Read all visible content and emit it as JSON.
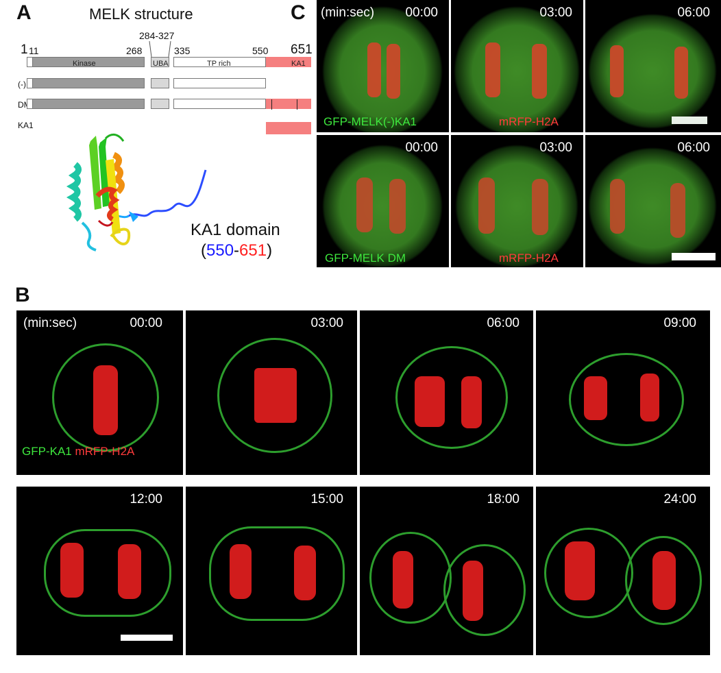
{
  "panel_a": {
    "letter": "A",
    "title": "MELK structure",
    "positions": {
      "p1": "1",
      "p11": "11",
      "p268": "268",
      "p284_327": "284-327",
      "p335": "335",
      "p550": "550",
      "p651": "651"
    },
    "domains": {
      "kinase": "Kinase",
      "uba": "UBA",
      "tp_rich": "TP  rich",
      "ka1": "KA1"
    },
    "rows": [
      "(-)KA1",
      "DM",
      "KA1"
    ],
    "structure_label": {
      "line1": "KA1 domain",
      "open": "(",
      "start": "550",
      "dash": "-",
      "end": "651",
      "close": ")"
    },
    "colors": {
      "start": "#1a1aff",
      "end": "#ff2020",
      "ka1_box": "#f57f7f"
    }
  },
  "panel_b": {
    "letter": "B",
    "unit_label": "(min:sec)",
    "times": [
      "00:00",
      "03:00",
      "06:00",
      "09:00",
      "12:00",
      "15:00",
      "18:00",
      "24:00"
    ],
    "green_label": "GFP-KA1",
    "red_label": "mRFP-H2A"
  },
  "panel_c": {
    "letter": "C",
    "unit_label": "(min:sec)",
    "times": [
      "00:00",
      "03:00",
      "06:00"
    ],
    "row1_green": "GFP-MELK(-)KA1",
    "row1_red": "mRFP-H2A",
    "row2_green": "GFP-MELK DM",
    "row2_red": "mRFP-H2A"
  }
}
